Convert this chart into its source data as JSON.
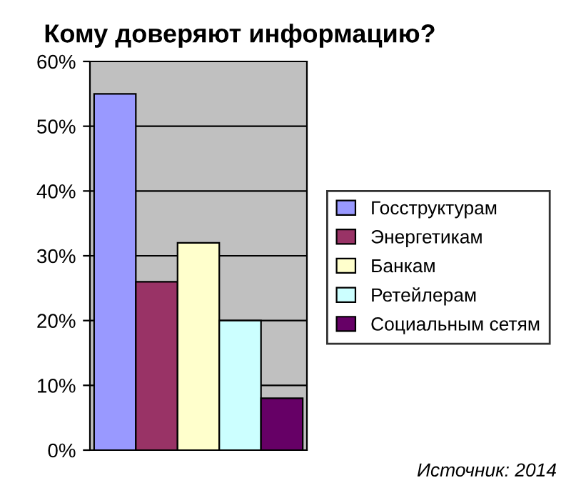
{
  "chart_data": {
    "type": "bar",
    "title": "Кому доверяют информацию?",
    "categories": [
      null
    ],
    "series": [
      {
        "name": "Госструктурам",
        "color": "#9999ff",
        "values": [
          55
        ]
      },
      {
        "name": "Энергетикам",
        "color": "#993366",
        "values": [
          26
        ]
      },
      {
        "name": "Банкам",
        "color": "#ffffcc",
        "values": [
          32
        ]
      },
      {
        "name": "Ретейлерам",
        "color": "#ccffff",
        "values": [
          20
        ]
      },
      {
        "name": "Социальным сетям",
        "color": "#660066",
        "values": [
          8
        ]
      }
    ],
    "ylim": [
      0,
      60
    ],
    "yticks": [
      {
        "value": 0,
        "label": "0%"
      },
      {
        "value": 10,
        "label": "10%"
      },
      {
        "value": 20,
        "label": "20%"
      },
      {
        "value": 30,
        "label": "30%"
      },
      {
        "value": 40,
        "label": "40%"
      },
      {
        "value": 50,
        "label": "50%"
      },
      {
        "value": 60,
        "label": "60%"
      }
    ],
    "grid": "y",
    "legend": "right",
    "tick_labels": "y",
    "annotations": [
      "Источник: 2014"
    ]
  }
}
